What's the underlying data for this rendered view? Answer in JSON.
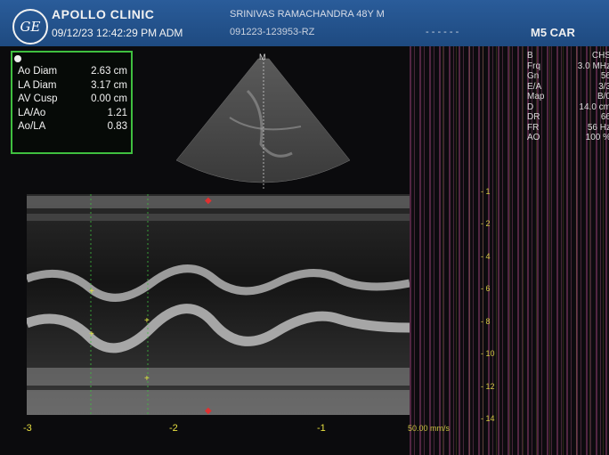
{
  "header": {
    "logo_text": "GE",
    "clinic_name": "APOLLO CLINIC",
    "datetime": "09/12/23 12:42:29 PM ADM",
    "patient": "SRINIVAS RAMACHANDRA 48Y M",
    "patient_id": "091223-123953-RZ",
    "dashes": "- - - - - -",
    "probe": "M5 CAR"
  },
  "measurements": [
    {
      "label": "Ao Diam",
      "value": "2.63 cm"
    },
    {
      "label": "LA Diam",
      "value": "3.17 cm"
    },
    {
      "label": "AV Cusp",
      "value": "0.00 cm"
    },
    {
      "label": "LA/Ao",
      "value": "1.21"
    },
    {
      "label": "Ao/LA",
      "value": "0.83"
    }
  ],
  "sector_label": "M",
  "params": [
    {
      "k": "B",
      "v": "CHS"
    },
    {
      "k": "Frq",
      "v": "3.0 MHz"
    },
    {
      "k": "Gn",
      "v": "56"
    },
    {
      "k": "E/A",
      "v": "3/3"
    },
    {
      "k": "Map",
      "v": "B/0"
    },
    {
      "k": "D",
      "v": "14.0 cm"
    },
    {
      "k": "DR",
      "v": "66"
    },
    {
      "k": "FR",
      "v": "56 Hz"
    },
    {
      "k": "AO",
      "v": "100 %"
    }
  ],
  "depth_scale": [
    "1",
    "2",
    "4",
    "6",
    "8",
    "10",
    "12",
    "14"
  ],
  "time_axis": [
    "-3",
    "-2",
    "-1"
  ],
  "sweep_speed": "50.00 mm/s",
  "colors": {
    "header": "#1e4a80",
    "measure_border": "#3fbf3f",
    "axis": "#e8e040",
    "marker": "#e03030"
  }
}
